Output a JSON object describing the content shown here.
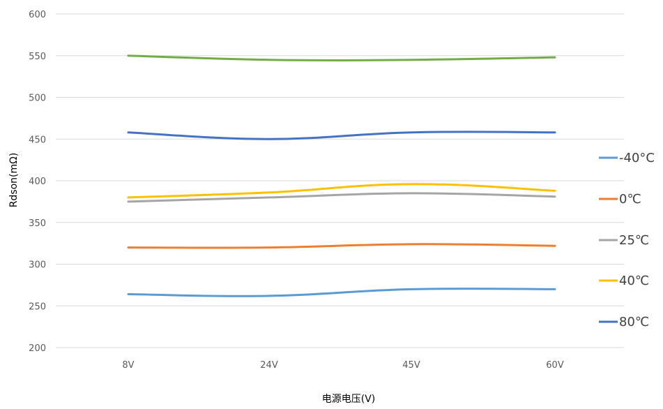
{
  "chart_data": {
    "type": "line",
    "ylabel": "Rdson(mΩ)",
    "xlabel": "电源电压(V)",
    "categories": [
      "8V",
      "24V",
      "45V",
      "60V"
    ],
    "ylim": [
      200,
      600
    ],
    "yticks": [
      200,
      250,
      300,
      350,
      400,
      450,
      500,
      550,
      600
    ],
    "grid": true,
    "smooth": true,
    "legend_position": "right",
    "series": [
      {
        "name": "-40°C",
        "color": "#5B9BD5",
        "values": [
          264,
          262,
          270,
          270
        ]
      },
      {
        "name": "0℃",
        "color": "#ED7D31",
        "values": [
          320,
          320,
          324,
          322
        ]
      },
      {
        "name": "25℃",
        "color": "#A5A5A5",
        "values": [
          375,
          380,
          385,
          381
        ]
      },
      {
        "name": "40℃",
        "color": "#FFC000",
        "values": [
          380,
          386,
          396,
          388
        ]
      },
      {
        "name": "80℃",
        "color": "#4472C4",
        "values": [
          458,
          450,
          458,
          458
        ]
      },
      {
        "name": "",
        "color": "#70AD47",
        "values": [
          550,
          545,
          545,
          548
        ]
      }
    ]
  }
}
